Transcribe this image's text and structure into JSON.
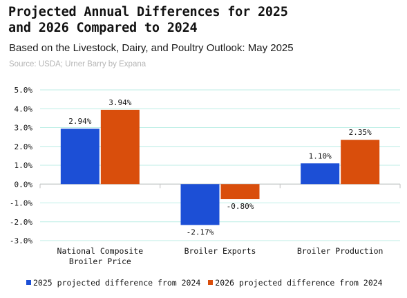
{
  "header": {
    "title_line1": "Projected Annual Differences for 2025",
    "title_line2": "and 2026 Compared to 2024",
    "subtitle": "Based on the Livestock, Dairy, and Poultry Outlook: May 2025",
    "source": "Source: USDA; Urner Barry by Expana"
  },
  "chart_data": {
    "type": "bar",
    "categories": [
      [
        "National Composite",
        "Broiler Price"
      ],
      [
        "Broiler Exports"
      ],
      [
        "Broiler Production"
      ]
    ],
    "series": [
      {
        "name": "2025 projected difference from 2024",
        "color": "#1c4fd6",
        "values": [
          2.94,
          -2.17,
          1.1
        ],
        "labels": [
          "2.94%",
          "-2.17%",
          "1.10%"
        ]
      },
      {
        "name": "2026 projected difference from 2024",
        "color": "#d94e0c",
        "values": [
          3.94,
          -0.8,
          2.35
        ],
        "labels": [
          "3.94%",
          "-0.80%",
          "2.35%"
        ]
      }
    ],
    "yticks": [
      "5.0%",
      "4.0%",
      "3.0%",
      "2.0%",
      "1.0%",
      "0.0%",
      "-1.0%",
      "-2.0%",
      "-3.0%"
    ],
    "ytick_values": [
      5,
      4,
      3,
      2,
      1,
      0,
      -1,
      -2,
      -3
    ],
    "ylim": [
      -3,
      5
    ],
    "grid": true,
    "grid_color": "#bdeee6",
    "legend_position": "bottom"
  }
}
